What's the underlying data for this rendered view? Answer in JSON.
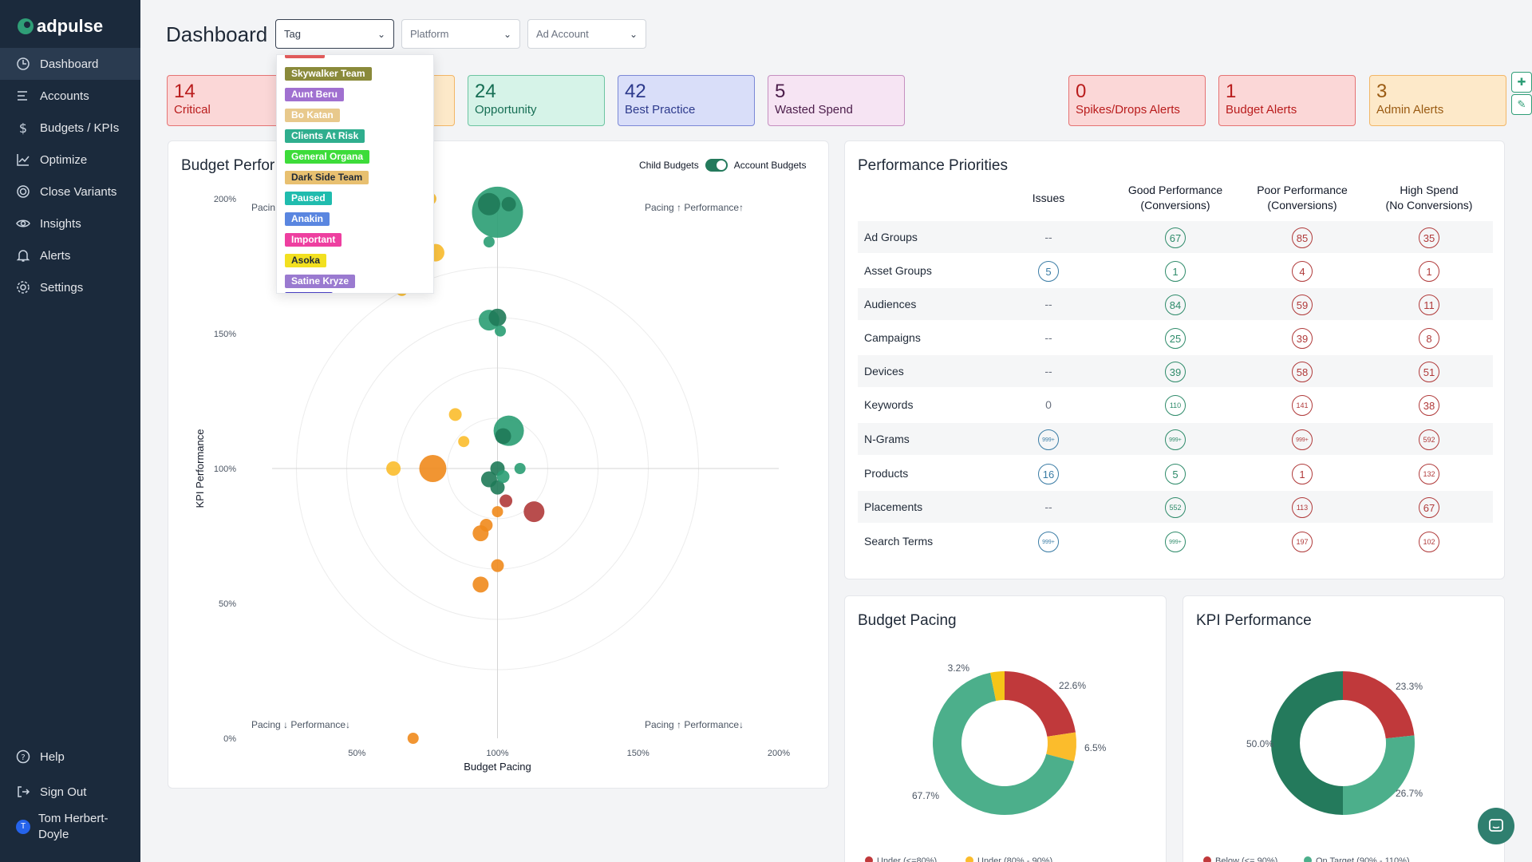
{
  "app": {
    "name": "adpulse"
  },
  "sidebar": {
    "items": [
      {
        "label": "Dashboard",
        "icon": "clock-icon",
        "active": true
      },
      {
        "label": "Accounts",
        "icon": "list-icon"
      },
      {
        "label": "Budgets / KPIs",
        "icon": "dollar-icon"
      },
      {
        "label": "Optimize",
        "icon": "chart-line-icon"
      },
      {
        "label": "Close Variants",
        "icon": "target-icon"
      },
      {
        "label": "Insights",
        "icon": "eye-icon"
      },
      {
        "label": "Alerts",
        "icon": "bell-icon"
      },
      {
        "label": "Settings",
        "icon": "gear-icon"
      }
    ],
    "help": "Help",
    "signout": "Sign Out",
    "user": {
      "name_line1": "Tom Herbert-",
      "name_line2": "Doyle",
      "initial": "T"
    }
  },
  "header": {
    "title": "Dashboard",
    "tag_select": {
      "value": "Tag"
    },
    "platform_select": {
      "value": "Platform"
    },
    "account_select": {
      "value": "Ad Account"
    }
  },
  "tag_dropdown": [
    {
      "label": "Skywalker Team",
      "bg": "#8a8a3a",
      "fg": "#ffffff"
    },
    {
      "label": "Aunt Beru",
      "bg": "#a070d0",
      "fg": "#ffffff"
    },
    {
      "label": "Bo Katan",
      "bg": "#e8c98c",
      "fg": "#ffffff"
    },
    {
      "label": "Clients At Risk",
      "bg": "#2fae8e",
      "fg": "#ffffff"
    },
    {
      "label": "General Organa",
      "bg": "#3ddc3a",
      "fg": "#ffffff"
    },
    {
      "label": "Dark Side Team",
      "bg": "#e8c070",
      "fg": "#1f2937"
    },
    {
      "label": "Paused",
      "bg": "#20bcae",
      "fg": "#ffffff"
    },
    {
      "label": "Anakin",
      "bg": "#5a86e0",
      "fg": "#ffffff"
    },
    {
      "label": "Important",
      "bg": "#ee3fa0",
      "fg": "#ffffff"
    },
    {
      "label": "Asoka",
      "bg": "#f2e020",
      "fg": "#1f2937"
    },
    {
      "label": "Satine Kryze",
      "bg": "#9a7ad0",
      "fg": "#ffffff"
    }
  ],
  "stats": [
    {
      "value": "14",
      "label": "Critical",
      "bg": "#fbd7d7",
      "border": "#e57373",
      "color": "#b91c1c"
    },
    {
      "value": "24",
      "label": "Opportunity",
      "bg": "#d6f3e8",
      "border": "#6cc4a1",
      "color": "#166e54"
    },
    {
      "value": "42",
      "label": "Best Practice",
      "bg": "#d9def9",
      "border": "#7b88d6",
      "color": "#2d3a8c"
    },
    {
      "value": "5",
      "label": "Wasted Spend",
      "bg": "#f6e4f3",
      "border": "#c58fc0",
      "color": "#4b1d4a"
    },
    {
      "value": "0",
      "label": "Spikes/Drops Alerts",
      "bg": "#fbd7d7",
      "border": "#e57373",
      "color": "#b91c1c"
    },
    {
      "value": "1",
      "label": "Budget Alerts",
      "bg": "#fbd7d7",
      "border": "#e57373",
      "color": "#b91c1c"
    },
    {
      "value": "3",
      "label": "Admin Alerts",
      "bg": "#fde9c9",
      "border": "#f2b667",
      "color": "#9a5b13"
    }
  ],
  "budget_panel": {
    "title": "Budget Perfor",
    "toggle_left": "Child Budgets",
    "toggle_right": "Account Budgets",
    "q_tl_left": "Pacin",
    "q_tr": "Pacing ↑ Performance↑",
    "q_bl": "Pacing ↓ Performance↓",
    "q_br": "Pacing ↑ Performance↓"
  },
  "chart_data": [
    {
      "type": "scatter",
      "title": "Budget Performance",
      "xlabel": "Budget Pacing",
      "ylabel": "KPI Performance",
      "xticks": [
        "50%",
        "100%",
        "150%",
        "200%"
      ],
      "yticks": [
        "0%",
        "50%",
        "100%",
        "150%",
        "200%"
      ],
      "xlim": [
        0,
        200
      ],
      "ylim": [
        0,
        200
      ],
      "points": [
        {
          "x": 100,
          "y": 195,
          "r": 32,
          "color": "#2a9d73"
        },
        {
          "x": 97,
          "y": 198,
          "r": 14,
          "color": "#1f7a58"
        },
        {
          "x": 104,
          "y": 198,
          "r": 9,
          "color": "#1f7a58"
        },
        {
          "x": 97,
          "y": 184,
          "r": 7,
          "color": "#2a9d73"
        },
        {
          "x": 97,
          "y": 155,
          "r": 13,
          "color": "#2a9d73"
        },
        {
          "x": 100,
          "y": 156,
          "r": 11,
          "color": "#1f7a58"
        },
        {
          "x": 101,
          "y": 151,
          "r": 7,
          "color": "#2a9d73"
        },
        {
          "x": 104,
          "y": 114,
          "r": 19,
          "color": "#2a9d73"
        },
        {
          "x": 102,
          "y": 112,
          "r": 10,
          "color": "#1f7a58"
        },
        {
          "x": 100,
          "y": 100,
          "r": 9,
          "color": "#1f7a58"
        },
        {
          "x": 97,
          "y": 96,
          "r": 10,
          "color": "#1f7a58"
        },
        {
          "x": 100,
          "y": 93,
          "r": 9,
          "color": "#1f7a58"
        },
        {
          "x": 108,
          "y": 100,
          "r": 7,
          "color": "#2a9d73"
        },
        {
          "x": 102,
          "y": 97,
          "r": 8,
          "color": "#2a9d73"
        },
        {
          "x": 103,
          "y": 88,
          "r": 8,
          "color": "#b03a3a"
        },
        {
          "x": 113,
          "y": 84,
          "r": 13,
          "color": "#b03a3a"
        },
        {
          "x": 100,
          "y": 84,
          "r": 7,
          "color": "#f08a1c"
        },
        {
          "x": 96,
          "y": 79,
          "r": 8,
          "color": "#f08a1c"
        },
        {
          "x": 94,
          "y": 76,
          "r": 10,
          "color": "#f08a1c"
        },
        {
          "x": 100,
          "y": 64,
          "r": 8,
          "color": "#f08a1c"
        },
        {
          "x": 94,
          "y": 57,
          "r": 10,
          "color": "#f08a1c"
        },
        {
          "x": 77,
          "y": 100,
          "r": 17,
          "color": "#f08a1c"
        },
        {
          "x": 63,
          "y": 100,
          "r": 9,
          "color": "#fbbc2c"
        },
        {
          "x": 85,
          "y": 120,
          "r": 8,
          "color": "#fbbc2c"
        },
        {
          "x": 88,
          "y": 110,
          "r": 7,
          "color": "#fbbc2c"
        },
        {
          "x": 78,
          "y": 180,
          "r": 11,
          "color": "#fbbc2c"
        },
        {
          "x": 76,
          "y": 200,
          "r": 8,
          "color": "#fbbc2c"
        },
        {
          "x": 73,
          "y": 200,
          "r": 8,
          "color": "#fbbc2c"
        },
        {
          "x": 66,
          "y": 166,
          "r": 7,
          "color": "#fbbc2c"
        },
        {
          "x": 70,
          "y": 0,
          "r": 7,
          "color": "#f08a1c"
        }
      ]
    },
    {
      "type": "pie",
      "title": "Budget Pacing",
      "slices": [
        {
          "label": "22.6%",
          "value": 22.6,
          "color": "#c0393b"
        },
        {
          "label": "6.5%",
          "value": 6.5,
          "color": "#fbbc2c"
        },
        {
          "label": "67.7%",
          "value": 67.7,
          "color": "#4caf8b"
        },
        {
          "label": "3.2%",
          "value": 3.2,
          "color": "#f5c518"
        }
      ],
      "legend": [
        "Under (<=80%)",
        "Under (80% - 90%)"
      ]
    },
    {
      "type": "pie",
      "title": "KPI Performance",
      "slices": [
        {
          "label": "23.3%",
          "value": 23.3,
          "color": "#c0393b"
        },
        {
          "label": "26.7%",
          "value": 26.7,
          "color": "#4caf8b"
        },
        {
          "label": "50.0%",
          "value": 50.0,
          "color": "#247a5c"
        }
      ],
      "legend": [
        "Below (<= 90%)",
        "On Target (90% - 110%)"
      ]
    }
  ],
  "priorities": {
    "title": "Performance Priorities",
    "columns": [
      {
        "line1": "Issues",
        "line2": ""
      },
      {
        "line1": "Good Performance",
        "line2": "(Conversions)"
      },
      {
        "line1": "Poor Performance",
        "line2": "(Conversions)"
      },
      {
        "line1": "High Spend",
        "line2": "(No Conversions)"
      }
    ],
    "col_colors": [
      "#3a7ca5",
      "#2e8b6a",
      "#b03a3a",
      "#b03a3a"
    ],
    "rows": [
      {
        "label": "Ad Groups",
        "issues": "--",
        "good": "67",
        "poor": "85",
        "high": "35"
      },
      {
        "label": "Asset Groups",
        "issues": "5",
        "good": "1",
        "poor": "4",
        "high": "1"
      },
      {
        "label": "Audiences",
        "issues": "--",
        "good": "84",
        "poor": "59",
        "high": "11"
      },
      {
        "label": "Campaigns",
        "issues": "--",
        "good": "25",
        "poor": "39",
        "high": "8"
      },
      {
        "label": "Devices",
        "issues": "--",
        "good": "39",
        "poor": "58",
        "high": "51"
      },
      {
        "label": "Keywords",
        "issues": "0",
        "good": "110",
        "poor": "141",
        "high": "38"
      },
      {
        "label": "N-Grams",
        "issues": "999+",
        "good": "999+",
        "poor": "999+",
        "high": "592"
      },
      {
        "label": "Products",
        "issues": "16",
        "good": "5",
        "poor": "1",
        "high": "132"
      },
      {
        "label": "Placements",
        "issues": "--",
        "good": "552",
        "poor": "113",
        "high": "67"
      },
      {
        "label": "Search Terms",
        "issues": "999+",
        "good": "999+",
        "poor": "197",
        "high": "102"
      }
    ]
  }
}
